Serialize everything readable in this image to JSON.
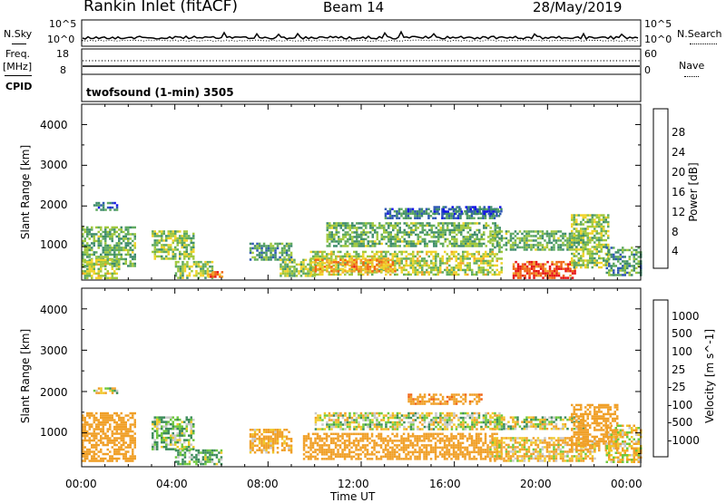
{
  "header": {
    "title": "Rankin Inlet (fitACF)",
    "beam": "Beam 14",
    "date": "28/May/2019"
  },
  "noise_panel": {
    "left_label": "N.Sky",
    "right_label": "N.Search",
    "left_ticks": [
      "10^5",
      "10^0"
    ],
    "right_ticks": [
      "10^5",
      "10^0"
    ]
  },
  "freq_panel": {
    "left_label_1": "Freq.",
    "left_label_2": "[MHz]",
    "right_label": "Nave",
    "left_ticks": [
      "18",
      "8"
    ],
    "right_ticks": [
      "60",
      "0"
    ],
    "cpid_label": "CPID"
  },
  "program_label": "twofsound (1-min) 3505",
  "x_axis": {
    "label": "Time UT",
    "ticks": [
      "00:00",
      "04:00",
      "08:00",
      "12:00",
      "16:00",
      "20:00",
      "00:00"
    ]
  },
  "colors": {
    "power_scale": [
      "#1414e6",
      "#2f58b4",
      "#3f8c6c",
      "#5faa5f",
      "#a0c83c",
      "#f0d228",
      "#f0a028",
      "#f06414",
      "#e61414"
    ],
    "velocity_scale": [
      "#2850a0",
      "#3c7ab4",
      "#3c8c5a",
      "#6ec83c",
      "#c8c8c8",
      "#f0c828",
      "#f0a028",
      "#f06414",
      "#e61414"
    ]
  },
  "chart_data": [
    {
      "type": "heatmap",
      "title": "Power",
      "ylabel": "Slant Range [km]",
      "xlabel": "Time UT",
      "xlim": [
        0,
        24
      ],
      "ylim": [
        180,
        4500
      ],
      "yticks": [
        "1000",
        "2000",
        "3000",
        "4000"
      ],
      "colorbar": {
        "label": "Power [dB]",
        "ticks": [
          "4",
          "8",
          "12",
          "16",
          "20",
          "24",
          "28"
        ],
        "range": [
          0,
          30
        ]
      },
      "regions": [
        {
          "t": [
            0.0,
            2.3
          ],
          "r": [
            500,
            1500
          ],
          "v": 12
        },
        {
          "t": [
            0.0,
            1.6
          ],
          "r": [
            230,
            700
          ],
          "v": 16
        },
        {
          "t": [
            0.5,
            1.5
          ],
          "r": [
            1900,
            2100
          ],
          "v": 6
        },
        {
          "t": [
            3.0,
            4.8
          ],
          "r": [
            700,
            1400
          ],
          "v": 14
        },
        {
          "t": [
            4.0,
            5.6
          ],
          "r": [
            250,
            650
          ],
          "v": 14
        },
        {
          "t": [
            5.4,
            6.0
          ],
          "r": [
            250,
            400
          ],
          "v": 24
        },
        {
          "t": [
            7.2,
            9.0
          ],
          "r": [
            700,
            1100
          ],
          "v": 10
        },
        {
          "t": [
            8.5,
            10.0
          ],
          "r": [
            300,
            700
          ],
          "v": 14
        },
        {
          "t": [
            9.8,
            18.0
          ],
          "r": [
            300,
            900
          ],
          "v": 16
        },
        {
          "t": [
            10.0,
            13.5
          ],
          "r": [
            400,
            700
          ],
          "v": 22
        },
        {
          "t": [
            10.5,
            18.0
          ],
          "r": [
            1000,
            1600
          ],
          "v": 12
        },
        {
          "t": [
            13.0,
            18.0
          ],
          "r": [
            1700,
            1950
          ],
          "v": 8
        },
        {
          "t": [
            15.0,
            18.0
          ],
          "r": [
            1800,
            2000
          ],
          "v": 6
        },
        {
          "t": [
            17.5,
            21.5
          ],
          "r": [
            900,
            1400
          ],
          "v": 12
        },
        {
          "t": [
            18.5,
            21.2
          ],
          "r": [
            250,
            650
          ],
          "v": 26
        },
        {
          "t": [
            21.0,
            22.6
          ],
          "r": [
            500,
            1800
          ],
          "v": 14
        },
        {
          "t": [
            22.5,
            24.0
          ],
          "r": [
            300,
            1000
          ],
          "v": 10
        }
      ]
    },
    {
      "type": "heatmap",
      "title": "Velocity",
      "ylabel": "Slant Range [km]",
      "xlabel": "Time UT",
      "xlim": [
        0,
        24
      ],
      "ylim": [
        180,
        4500
      ],
      "yticks": [
        "1000",
        "2000",
        "3000",
        "4000"
      ],
      "colorbar": {
        "label": "Velocity [m s^-1]",
        "ticks": [
          "1000",
          "500",
          "100",
          "25",
          "-25",
          "-100",
          "-500",
          "-1000"
        ]
      },
      "regions": [
        {
          "t": [
            0.0,
            2.3
          ],
          "r": [
            300,
            1500
          ],
          "v": -300
        },
        {
          "t": [
            0.5,
            1.5
          ],
          "r": [
            1950,
            2100
          ],
          "v": 0
        },
        {
          "t": [
            3.0,
            4.8
          ],
          "r": [
            600,
            1400
          ],
          "v": 80
        },
        {
          "t": [
            4.0,
            6.0
          ],
          "r": [
            230,
            600
          ],
          "v": 120
        },
        {
          "t": [
            7.2,
            9.0
          ],
          "r": [
            500,
            1100
          ],
          "v": -150
        },
        {
          "t": [
            9.5,
            18.0
          ],
          "r": [
            350,
            1000
          ],
          "v": -300
        },
        {
          "t": [
            10.0,
            18.0
          ],
          "r": [
            1100,
            1500
          ],
          "v": 0
        },
        {
          "t": [
            14.0,
            17.2
          ],
          "r": [
            1700,
            1950
          ],
          "v": -400
        },
        {
          "t": [
            17.5,
            21.5
          ],
          "r": [
            1100,
            1400
          ],
          "v": 0
        },
        {
          "t": [
            17.5,
            22.0
          ],
          "r": [
            300,
            900
          ],
          "v": -80
        },
        {
          "t": [
            21.0,
            23.0
          ],
          "r": [
            600,
            1700
          ],
          "v": -250
        },
        {
          "t": [
            22.5,
            24.0
          ],
          "r": [
            300,
            1200
          ],
          "v": -60
        }
      ]
    }
  ]
}
